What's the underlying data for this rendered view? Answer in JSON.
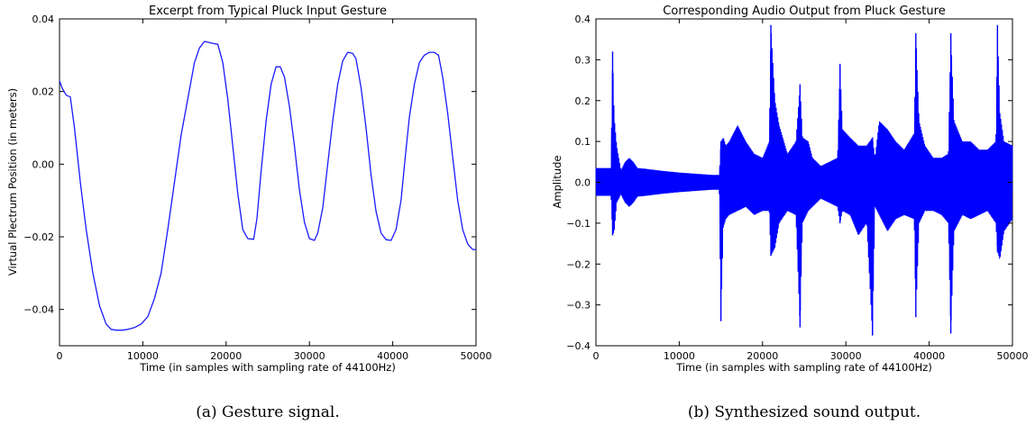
{
  "chart_data": [
    {
      "type": "line",
      "title": "Excerpt from Typical Pluck Input Gesture",
      "xlabel": "Time (in samples with sampling rate of 44100Hz)",
      "ylabel": "Virtual Plectrum Position (in meters)",
      "caption": "(a) Gesture signal.",
      "xlim": [
        0,
        50000
      ],
      "ylim": [
        -0.05,
        0.04
      ],
      "xticks": [
        0,
        10000,
        20000,
        30000,
        40000,
        50000
      ],
      "xtick_labels": [
        "0",
        "10000",
        "20000",
        "30000",
        "40000",
        "50000"
      ],
      "yticks": [
        0.04,
        0.02,
        0.0,
        -0.02,
        -0.04
      ],
      "ytick_labels": [
        "0.04",
        "0.02",
        "0.00",
        "−0.02",
        "−0.04"
      ],
      "grid": false,
      "color": "#1a1aff",
      "series": [
        {
          "x": [
            0,
            300,
            800,
            1300,
            1800,
            2500,
            3200,
            4000,
            4800,
            5600,
            6200,
            6800,
            7500,
            8200,
            9000,
            9800,
            10600,
            11400,
            12200,
            13000,
            13800,
            14600,
            15400,
            16200,
            16800,
            17400,
            18000,
            18500,
            19000,
            19600,
            20200,
            20800,
            21400,
            22000,
            22600,
            23300,
            23700,
            24200,
            24800,
            25400,
            26000,
            26500,
            27000,
            27600,
            28200,
            28800,
            29400,
            30000,
            30600,
            31000,
            31600,
            32200,
            32800,
            33400,
            34000,
            34600,
            35200,
            35600,
            36200,
            36800,
            37400,
            38000,
            38600,
            39200,
            39800,
            40400,
            41000,
            41500,
            42000,
            42600,
            43200,
            43800,
            44400,
            45000,
            45500,
            46000,
            46600,
            47200,
            47800,
            48400,
            49000,
            49600,
            50000
          ],
          "y": [
            0.023,
            0.021,
            0.019,
            0.0185,
            0.01,
            -0.005,
            -0.018,
            -0.03,
            -0.039,
            -0.044,
            -0.0455,
            -0.0457,
            -0.0457,
            -0.0455,
            -0.045,
            -0.044,
            -0.042,
            -0.037,
            -0.03,
            -0.018,
            -0.005,
            0.008,
            0.018,
            0.028,
            0.032,
            0.0338,
            0.0335,
            0.0332,
            0.033,
            0.028,
            0.018,
            0.005,
            -0.008,
            -0.018,
            -0.0205,
            -0.0207,
            -0.015,
            -0.002,
            0.012,
            0.022,
            0.0268,
            0.0268,
            0.024,
            0.016,
            0.005,
            -0.007,
            -0.016,
            -0.0205,
            -0.021,
            -0.019,
            -0.012,
            0.0,
            0.012,
            0.022,
            0.0285,
            0.0308,
            0.0305,
            0.029,
            0.021,
            0.01,
            -0.003,
            -0.013,
            -0.019,
            -0.0208,
            -0.021,
            -0.018,
            -0.01,
            0.002,
            0.013,
            0.022,
            0.028,
            0.03,
            0.0308,
            0.0308,
            0.03,
            0.024,
            0.014,
            0.002,
            -0.01,
            -0.018,
            -0.022,
            -0.0235,
            -0.0235
          ]
        }
      ]
    },
    {
      "type": "line",
      "title": "Corresponding Audio Output from Pluck Gesture",
      "xlabel": "Time (in samples with sampling rate of 44100Hz)",
      "ylabel": "Amplitude",
      "caption": "(b) Synthesized sound output.",
      "xlim": [
        0,
        50000
      ],
      "ylim": [
        -0.4,
        0.4
      ],
      "xticks": [
        0,
        10000,
        20000,
        30000,
        40000,
        50000
      ],
      "xtick_labels": [
        "0",
        "10000",
        "20000",
        "30000",
        "40000",
        "50000"
      ],
      "yticks": [
        0.4,
        0.3,
        0.2,
        0.1,
        0.0,
        -0.1,
        -0.2,
        -0.3,
        -0.4
      ],
      "ytick_labels": [
        "0.4",
        "0.3",
        "0.2",
        "0.1",
        "0.0",
        "−0.1",
        "−0.2",
        "−0.3",
        "−0.4"
      ],
      "grid": false,
      "color": "#0000ff",
      "series": [
        {
          "x": [
            0,
            1000,
            1800,
            2000,
            2200,
            2500,
            3000,
            3500,
            4000,
            4500,
            5000,
            6000,
            8000,
            10000,
            12000,
            14000,
            14800,
            15000,
            15300,
            15600,
            16000,
            17000,
            18000,
            19000,
            20000,
            20800,
            21000,
            21500,
            22000,
            23000,
            24000,
            24500,
            24800,
            25500,
            26000,
            27000,
            28000,
            29000,
            29300,
            29600,
            30500,
            31500,
            32500,
            33200,
            33500,
            34000,
            35000,
            36000,
            37000,
            38200,
            38400,
            38800,
            39500,
            40500,
            41500,
            42300,
            42600,
            43000,
            44000,
            45000,
            46000,
            47000,
            48000,
            48200,
            48500,
            49000,
            50000
          ],
          "upper": [
            0.035,
            0.035,
            0.035,
            0.32,
            0.16,
            0.09,
            0.03,
            0.05,
            0.06,
            0.05,
            0.035,
            0.033,
            0.028,
            0.024,
            0.021,
            0.018,
            0.018,
            0.1,
            0.11,
            0.09,
            0.1,
            0.14,
            0.1,
            0.07,
            0.06,
            0.1,
            0.385,
            0.2,
            0.14,
            0.07,
            0.1,
            0.24,
            0.11,
            0.1,
            0.06,
            0.04,
            0.05,
            0.06,
            0.29,
            0.13,
            0.11,
            0.09,
            0.09,
            0.11,
            0.06,
            0.15,
            0.13,
            0.1,
            0.08,
            0.12,
            0.365,
            0.15,
            0.09,
            0.06,
            0.06,
            0.07,
            0.365,
            0.15,
            0.1,
            0.1,
            0.08,
            0.08,
            0.1,
            0.385,
            0.17,
            0.1,
            0.09
          ],
          "lower": [
            -0.033,
            -0.033,
            -0.033,
            -0.13,
            -0.12,
            -0.05,
            -0.03,
            -0.05,
            -0.06,
            -0.05,
            -0.035,
            -0.033,
            -0.028,
            -0.024,
            -0.021,
            -0.018,
            -0.018,
            -0.34,
            -0.11,
            -0.09,
            -0.08,
            -0.07,
            -0.06,
            -0.08,
            -0.07,
            -0.07,
            -0.18,
            -0.16,
            -0.1,
            -0.07,
            -0.08,
            -0.355,
            -0.1,
            -0.07,
            -0.06,
            -0.04,
            -0.05,
            -0.06,
            -0.1,
            -0.07,
            -0.08,
            -0.13,
            -0.1,
            -0.375,
            -0.06,
            -0.08,
            -0.12,
            -0.09,
            -0.08,
            -0.09,
            -0.33,
            -0.1,
            -0.07,
            -0.07,
            -0.08,
            -0.1,
            -0.37,
            -0.12,
            -0.08,
            -0.09,
            -0.08,
            -0.07,
            -0.1,
            -0.17,
            -0.19,
            -0.12,
            -0.09
          ]
        }
      ]
    }
  ]
}
